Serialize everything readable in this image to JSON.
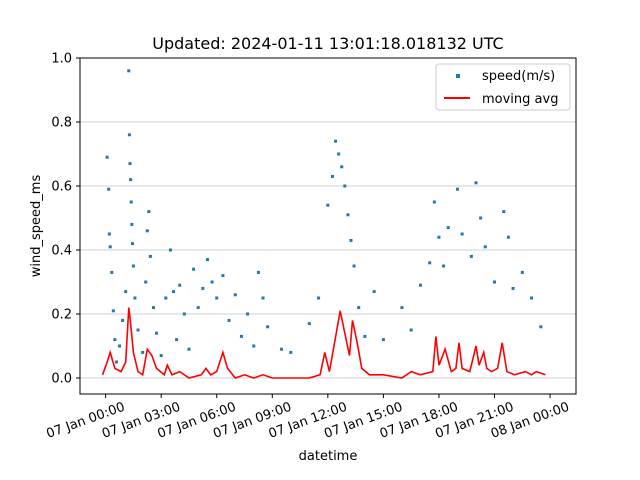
{
  "chart_data": {
    "type": "scatter",
    "title": "Updated: 2024-01-11 13:01:18.018132 UTC",
    "xlabel": "datetime",
    "ylabel": "wind_speed_ms",
    "ylim": [
      -0.05,
      1.0
    ],
    "y_ticks": [
      "0.0",
      "0.2",
      "0.4",
      "0.6",
      "0.8",
      "1.0"
    ],
    "x_range": [
      "2024-01-06 22:37",
      "2024-01-08 01:24"
    ],
    "x_ticks": [
      "07 Jan 00:00",
      "07 Jan 03:00",
      "07 Jan 06:00",
      "07 Jan 09:00",
      "07 Jan 12:00",
      "07 Jan 15:00",
      "07 Jan 18:00",
      "07 Jan 21:00",
      "08 Jan 00:00"
    ],
    "grid": "horizontal",
    "legend": {
      "placement": "top-right",
      "entries": [
        "speed(m/s)",
        "moving avg"
      ]
    },
    "colors": {
      "scatter": "#1f77b4",
      "line": "#ff0000"
    },
    "series": [
      {
        "name": "speed(m/s)",
        "kind": "scatter",
        "points": [
          [
            "2024-01-07 00:05",
            0.69
          ],
          [
            "2024-01-07 00:10",
            0.59
          ],
          [
            "2024-01-07 00:12",
            0.45
          ],
          [
            "2024-01-07 00:15",
            0.41
          ],
          [
            "2024-01-07 00:20",
            0.33
          ],
          [
            "2024-01-07 00:25",
            0.21
          ],
          [
            "2024-01-07 00:30",
            0.12
          ],
          [
            "2024-01-07 00:35",
            0.05
          ],
          [
            "2024-01-07 00:45",
            0.1
          ],
          [
            "2024-01-07 00:55",
            0.18
          ],
          [
            "2024-01-07 01:05",
            0.27
          ],
          [
            "2024-01-07 01:15",
            0.96
          ],
          [
            "2024-01-07 01:17",
            0.76
          ],
          [
            "2024-01-07 01:19",
            0.67
          ],
          [
            "2024-01-07 01:21",
            0.62
          ],
          [
            "2024-01-07 01:23",
            0.55
          ],
          [
            "2024-01-07 01:25",
            0.48
          ],
          [
            "2024-01-07 01:27",
            0.42
          ],
          [
            "2024-01-07 01:30",
            0.35
          ],
          [
            "2024-01-07 01:35",
            0.25
          ],
          [
            "2024-01-07 01:45",
            0.15
          ],
          [
            "2024-01-07 02:00",
            0.08
          ],
          [
            "2024-01-07 02:10",
            0.3
          ],
          [
            "2024-01-07 02:15",
            0.46
          ],
          [
            "2024-01-07 02:20",
            0.52
          ],
          [
            "2024-01-07 02:25",
            0.38
          ],
          [
            "2024-01-07 02:35",
            0.22
          ],
          [
            "2024-01-07 02:45",
            0.14
          ],
          [
            "2024-01-07 03:00",
            0.07
          ],
          [
            "2024-01-07 03:15",
            0.25
          ],
          [
            "2024-01-07 03:30",
            0.4
          ],
          [
            "2024-01-07 03:40",
            0.27
          ],
          [
            "2024-01-07 03:50",
            0.12
          ],
          [
            "2024-01-07 04:00",
            0.29
          ],
          [
            "2024-01-07 04:15",
            0.2
          ],
          [
            "2024-01-07 04:30",
            0.09
          ],
          [
            "2024-01-07 04:45",
            0.34
          ],
          [
            "2024-01-07 05:00",
            0.22
          ],
          [
            "2024-01-07 05:15",
            0.28
          ],
          [
            "2024-01-07 05:30",
            0.37
          ],
          [
            "2024-01-07 05:45",
            0.3
          ],
          [
            "2024-01-07 06:00",
            0.25
          ],
          [
            "2024-01-07 06:20",
            0.32
          ],
          [
            "2024-01-07 06:40",
            0.18
          ],
          [
            "2024-01-07 07:00",
            0.26
          ],
          [
            "2024-01-07 07:20",
            0.13
          ],
          [
            "2024-01-07 07:40",
            0.2
          ],
          [
            "2024-01-07 08:00",
            0.1
          ],
          [
            "2024-01-07 08:15",
            0.33
          ],
          [
            "2024-01-07 08:30",
            0.25
          ],
          [
            "2024-01-07 08:45",
            0.16
          ],
          [
            "2024-01-07 09:30",
            0.09
          ],
          [
            "2024-01-07 10:00",
            0.08
          ],
          [
            "2024-01-07 11:00",
            0.17
          ],
          [
            "2024-01-07 11:30",
            0.25
          ],
          [
            "2024-01-07 12:00",
            0.54
          ],
          [
            "2024-01-07 12:15",
            0.63
          ],
          [
            "2024-01-07 12:25",
            0.74
          ],
          [
            "2024-01-07 12:35",
            0.7
          ],
          [
            "2024-01-07 12:45",
            0.66
          ],
          [
            "2024-01-07 12:55",
            0.6
          ],
          [
            "2024-01-07 13:05",
            0.51
          ],
          [
            "2024-01-07 13:15",
            0.43
          ],
          [
            "2024-01-07 13:25",
            0.35
          ],
          [
            "2024-01-07 13:40",
            0.22
          ],
          [
            "2024-01-07 14:00",
            0.13
          ],
          [
            "2024-01-07 14:30",
            0.27
          ],
          [
            "2024-01-07 15:00",
            0.12
          ],
          [
            "2024-01-07 16:00",
            0.22
          ],
          [
            "2024-01-07 16:30",
            0.15
          ],
          [
            "2024-01-07 17:00",
            0.29
          ],
          [
            "2024-01-07 17:30",
            0.36
          ],
          [
            "2024-01-07 17:45",
            0.55
          ],
          [
            "2024-01-07 18:00",
            0.44
          ],
          [
            "2024-01-07 18:15",
            0.35
          ],
          [
            "2024-01-07 18:30",
            0.47
          ],
          [
            "2024-01-07 19:00",
            0.59
          ],
          [
            "2024-01-07 19:15",
            0.45
          ],
          [
            "2024-01-07 19:45",
            0.38
          ],
          [
            "2024-01-07 20:00",
            0.61
          ],
          [
            "2024-01-07 20:15",
            0.5
          ],
          [
            "2024-01-07 20:30",
            0.41
          ],
          [
            "2024-01-07 21:00",
            0.3
          ],
          [
            "2024-01-07 21:30",
            0.52
          ],
          [
            "2024-01-07 21:45",
            0.44
          ],
          [
            "2024-01-07 22:00",
            0.28
          ],
          [
            "2024-01-07 22:30",
            0.33
          ],
          [
            "2024-01-07 23:00",
            0.25
          ],
          [
            "2024-01-07 23:30",
            0.16
          ]
        ]
      },
      {
        "name": "moving avg",
        "kind": "line",
        "points": [
          [
            "2024-01-06 23:50",
            0.01
          ],
          [
            "2024-01-07 00:05",
            0.05
          ],
          [
            "2024-01-07 00:15",
            0.08
          ],
          [
            "2024-01-07 00:30",
            0.03
          ],
          [
            "2024-01-07 00:50",
            0.02
          ],
          [
            "2024-01-07 01:05",
            0.05
          ],
          [
            "2024-01-07 01:15",
            0.22
          ],
          [
            "2024-01-07 01:20",
            0.18
          ],
          [
            "2024-01-07 01:30",
            0.08
          ],
          [
            "2024-01-07 01:45",
            0.02
          ],
          [
            "2024-01-07 02:00",
            0.01
          ],
          [
            "2024-01-07 02:15",
            0.09
          ],
          [
            "2024-01-07 02:30",
            0.07
          ],
          [
            "2024-01-07 02:45",
            0.03
          ],
          [
            "2024-01-07 03:10",
            0.01
          ],
          [
            "2024-01-07 03:20",
            0.04
          ],
          [
            "2024-01-07 03:35",
            0.01
          ],
          [
            "2024-01-07 04:00",
            0.02
          ],
          [
            "2024-01-07 04:30",
            0.0
          ],
          [
            "2024-01-07 05:10",
            0.01
          ],
          [
            "2024-01-07 05:25",
            0.03
          ],
          [
            "2024-01-07 05:40",
            0.01
          ],
          [
            "2024-01-07 06:00",
            0.02
          ],
          [
            "2024-01-07 06:20",
            0.08
          ],
          [
            "2024-01-07 06:35",
            0.03
          ],
          [
            "2024-01-07 07:00",
            0.0
          ],
          [
            "2024-01-07 07:30",
            0.01
          ],
          [
            "2024-01-07 08:00",
            0.0
          ],
          [
            "2024-01-07 08:30",
            0.01
          ],
          [
            "2024-01-07 09:00",
            0.0
          ],
          [
            "2024-01-07 10:00",
            0.0
          ],
          [
            "2024-01-07 11:00",
            0.0
          ],
          [
            "2024-01-07 11:35",
            0.01
          ],
          [
            "2024-01-07 11:50",
            0.08
          ],
          [
            "2024-01-07 12:05",
            0.02
          ],
          [
            "2024-01-07 12:20",
            0.1
          ],
          [
            "2024-01-07 12:40",
            0.21
          ],
          [
            "2024-01-07 12:55",
            0.14
          ],
          [
            "2024-01-07 13:10",
            0.07
          ],
          [
            "2024-01-07 13:20",
            0.18
          ],
          [
            "2024-01-07 13:35",
            0.11
          ],
          [
            "2024-01-07 13:50",
            0.03
          ],
          [
            "2024-01-07 14:15",
            0.01
          ],
          [
            "2024-01-07 15:00",
            0.01
          ],
          [
            "2024-01-07 16:00",
            0.0
          ],
          [
            "2024-01-07 16:30",
            0.02
          ],
          [
            "2024-01-07 17:00",
            0.01
          ],
          [
            "2024-01-07 17:40",
            0.02
          ],
          [
            "2024-01-07 17:50",
            0.13
          ],
          [
            "2024-01-07 18:00",
            0.04
          ],
          [
            "2024-01-07 18:20",
            0.09
          ],
          [
            "2024-01-07 18:40",
            0.02
          ],
          [
            "2024-01-07 18:55",
            0.03
          ],
          [
            "2024-01-07 19:05",
            0.11
          ],
          [
            "2024-01-07 19:15",
            0.03
          ],
          [
            "2024-01-07 19:40",
            0.02
          ],
          [
            "2024-01-07 20:00",
            0.1
          ],
          [
            "2024-01-07 20:10",
            0.04
          ],
          [
            "2024-01-07 20:25",
            0.08
          ],
          [
            "2024-01-07 20:35",
            0.03
          ],
          [
            "2024-01-07 20:50",
            0.02
          ],
          [
            "2024-01-07 21:10",
            0.03
          ],
          [
            "2024-01-07 21:25",
            0.11
          ],
          [
            "2024-01-07 21:40",
            0.02
          ],
          [
            "2024-01-07 22:05",
            0.01
          ],
          [
            "2024-01-07 22:40",
            0.02
          ],
          [
            "2024-01-07 23:00",
            0.01
          ],
          [
            "2024-01-07 23:15",
            0.02
          ],
          [
            "2024-01-07 23:45",
            0.01
          ]
        ]
      }
    ]
  }
}
